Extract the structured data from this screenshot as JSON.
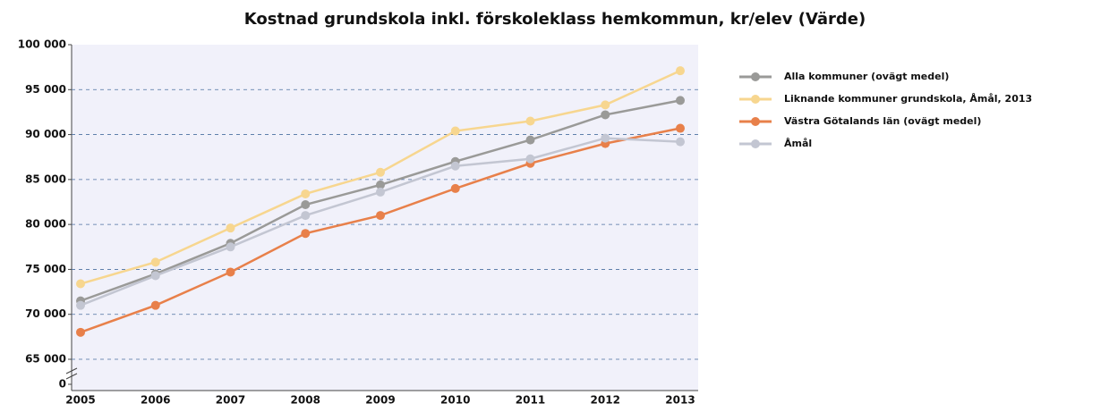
{
  "chart_data": {
    "type": "line",
    "title": "Kostnad grundskola inkl. förskoleklass hemkommun, kr/elev (Värde)",
    "categories": [
      "2005",
      "2006",
      "2007",
      "2008",
      "2009",
      "2010",
      "2011",
      "2012",
      "2013"
    ],
    "series": [
      {
        "name": "Alla kommuner (ovägt medel)",
        "color": "#9a9a98",
        "values": [
          71500,
          74500,
          77900,
          82200,
          84400,
          87000,
          89400,
          92200,
          93800
        ]
      },
      {
        "name": "Liknande kommuner grundskola, Åmål, 2013",
        "color": "#f7d68f",
        "values": [
          73400,
          75800,
          79600,
          83400,
          85800,
          90400,
          91500,
          93300,
          97100
        ]
      },
      {
        "name": "Västra Götalands län (ovägt medel)",
        "color": "#e8804a",
        "values": [
          68000,
          71000,
          74700,
          79000,
          81000,
          84000,
          86800,
          89000,
          90700
        ]
      },
      {
        "name": "Åmål",
        "color": "#c3c6d2",
        "values": [
          71000,
          74300,
          77500,
          81000,
          83600,
          86500,
          87300,
          89600,
          89200
        ]
      }
    ],
    "ylim": [
      65000,
      100000
    ],
    "yticks": [
      0,
      {
        "value": 65000,
        "label": "65 000"
      },
      {
        "value": 70000,
        "label": "70 000"
      },
      {
        "value": 75000,
        "label": "75 000"
      },
      {
        "value": 80000,
        "label": "80 000"
      },
      {
        "value": 85000,
        "label": "85 000"
      },
      {
        "value": 90000,
        "label": "90 000"
      },
      {
        "value": 95000,
        "label": "95 000"
      },
      {
        "value": 100000,
        "label": "100 000"
      }
    ],
    "axis_break": true,
    "grid": true,
    "legend": "right"
  }
}
